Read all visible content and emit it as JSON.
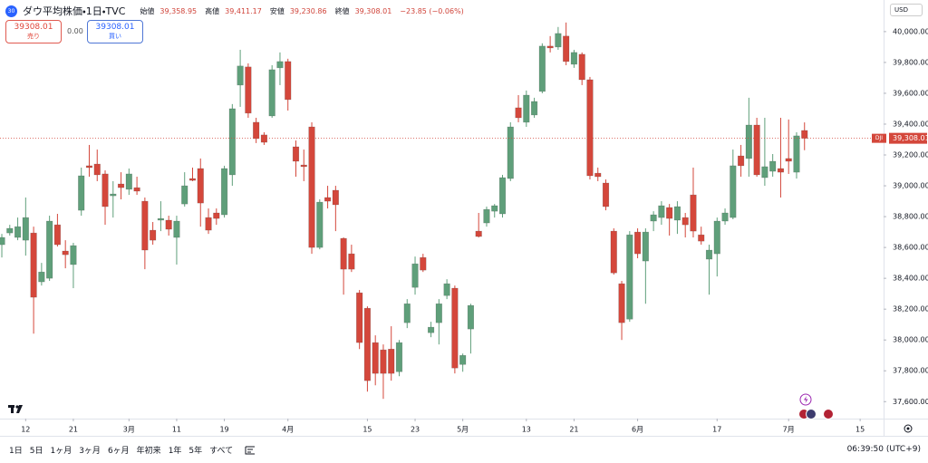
{
  "header": {
    "logo": "30",
    "title": "ダウ平均株価・1日・TVC",
    "open_label": "始値",
    "open": "39,358.95",
    "high_label": "高値",
    "high": "39,411.17",
    "low_label": "安値",
    "low": "39,230.86",
    "close_label": "終値",
    "close": "39,308.01",
    "change": "−23.85 (−0.06%)"
  },
  "trade": {
    "sell_price": "39308.01",
    "sell_label": "売り",
    "spread": "0.00",
    "buy_price": "39308.01",
    "buy_label": "買い"
  },
  "currency": "USD",
  "toolbar": {
    "ranges": [
      "1日",
      "5日",
      "1ヶ月",
      "3ヶ月",
      "6ヶ月",
      "年初来",
      "1年",
      "5年",
      "すべて"
    ],
    "clock": "06:39:50 (UTC+9)"
  },
  "chart_data": {
    "type": "candlestick",
    "up_color": "#5f9f7a",
    "down_color": "#d4473b",
    "grid": false,
    "symbol_tag": "DJI",
    "current_price_label": "39,308.01",
    "ylim": [
      37490,
      40205
    ],
    "yticks": [
      {
        "value": 37600,
        "label": "37,600.00"
      },
      {
        "value": 37800,
        "label": "37,800.00"
      },
      {
        "value": 38000,
        "label": "38,000.00"
      },
      {
        "value": 38200,
        "label": "38,200.00"
      },
      {
        "value": 38400,
        "label": "38,400.00"
      },
      {
        "value": 38600,
        "label": "38,600.00"
      },
      {
        "value": 38800,
        "label": "38,800.00"
      },
      {
        "value": 39000,
        "label": "39,000.00"
      },
      {
        "value": 39200,
        "label": "39,200.00"
      },
      {
        "value": 39400,
        "label": "39,400.00"
      },
      {
        "value": 39600,
        "label": "39,600.00"
      },
      {
        "value": 39800,
        "label": "39,800.00"
      },
      {
        "value": 40000,
        "label": "40,000.00"
      }
    ],
    "xlim": [
      -0.23,
      110.95
    ],
    "xticks": [
      {
        "value": 3,
        "label": "12"
      },
      {
        "value": 9,
        "label": "21"
      },
      {
        "value": 16,
        "label": "3月"
      },
      {
        "value": 22,
        "label": "11"
      },
      {
        "value": 28,
        "label": "19"
      },
      {
        "value": 36,
        "label": "4月"
      },
      {
        "value": 46,
        "label": "15"
      },
      {
        "value": 52,
        "label": "23"
      },
      {
        "value": 58,
        "label": "5月"
      },
      {
        "value": 66,
        "label": "13"
      },
      {
        "value": 72,
        "label": "21"
      },
      {
        "value": 80,
        "label": "6月"
      },
      {
        "value": 90,
        "label": "17"
      },
      {
        "value": 99,
        "label": "7月"
      },
      {
        "value": 108,
        "label": "15"
      }
    ],
    "open": [
      38618,
      38694,
      38665,
      38647,
      38694,
      38377,
      38400,
      38747,
      38577,
      38489,
      38841,
      39130,
      39141,
      39077,
      38935,
      39012,
      38977,
      38988,
      38900,
      38712,
      38777,
      38777,
      38665,
      38882,
      39047,
      39112,
      38794,
      38824,
      38812,
      39071,
      39653,
      39771,
      39412,
      39330,
      39453,
      39765,
      39806,
      39253,
      39135,
      39382,
      38600,
      38924,
      38971,
      38659,
      38559,
      38306,
      38206,
      37983,
      37936,
      37941,
      37794,
      38112,
      38341,
      38535,
      38047,
      38112,
      38288,
      38336,
      37841,
      38071,
      38706,
      38759,
      38835,
      38818,
      39047,
      39506,
      39412,
      39459,
      39612,
      39906,
      39900,
      39971,
      39788,
      39853,
      39688,
      39082,
      39018,
      38706,
      38365,
      38135,
      38700,
      38512,
      38771,
      38794,
      38859,
      38777,
      38794,
      38941,
      38682,
      38524,
      38559,
      38771,
      38794,
      39194,
      39177,
      39394,
      39053,
      39094,
      39112,
      39177,
      39088,
      39358.95
    ],
    "high": [
      38688,
      38747,
      38794,
      38924,
      38735,
      38500,
      38806,
      38818,
      38647,
      38630,
      39118,
      39265,
      39235,
      39100,
      39030,
      39088,
      39112,
      39059,
      38924,
      38765,
      38900,
      38806,
      38806,
      39088,
      39118,
      39177,
      38853,
      38853,
      39130,
      39530,
      39882,
      39794,
      39441,
      39347,
      39782,
      39865,
      39824,
      39294,
      39235,
      39412,
      38912,
      39000,
      39000,
      38665,
      38618,
      38324,
      38218,
      38030,
      37971,
      38089,
      38000,
      38265,
      38541,
      38559,
      38118,
      38265,
      38394,
      38353,
      37912,
      38235,
      38824,
      38865,
      38882,
      39071,
      39412,
      39588,
      39618,
      39571,
      39924,
      39971,
      40030,
      40059,
      39882,
      39865,
      39706,
      39118,
      39041,
      38724,
      38383,
      38706,
      38724,
      38724,
      38835,
      38900,
      38882,
      38900,
      38824,
      39118,
      38735,
      38618,
      38794,
      38853,
      39235,
      39265,
      39571,
      39441,
      39441,
      39206,
      39441,
      39430,
      39347,
      39411.17
    ],
    "low": [
      38535,
      38677,
      38647,
      38547,
      38041,
      38353,
      38383,
      38606,
      38465,
      38336,
      38806,
      39059,
      39030,
      38747,
      38794,
      38912,
      38941,
      38941,
      38459,
      38618,
      38706,
      38677,
      38489,
      38865,
      39030,
      38735,
      38688,
      38747,
      38794,
      39000,
      39512,
      39441,
      39277,
      39265,
      39441,
      39653,
      39488,
      39059,
      39030,
      38559,
      38588,
      38853,
      38706,
      38294,
      38441,
      37941,
      37665,
      37706,
      37618,
      37736,
      37765,
      38077,
      38294,
      38441,
      38018,
      37971,
      38265,
      37783,
      37794,
      37912,
      38665,
      38735,
      38794,
      38794,
      39030,
      39412,
      39382,
      39441,
      39600,
      39865,
      39882,
      39782,
      39765,
      39653,
      39041,
      39030,
      38841,
      38424,
      38000,
      38118,
      38530,
      38235,
      38706,
      38747,
      38677,
      38688,
      38665,
      38665,
      38618,
      38294,
      38412,
      38747,
      38783,
      39059,
      39059,
      39059,
      39000,
      39059,
      38924,
      39077,
      39047,
      39230.86
    ],
    "close": [
      38665,
      38724,
      38735,
      38794,
      38277,
      38441,
      38771,
      38618,
      38553,
      38612,
      39065,
      39118,
      39071,
      38865,
      38947,
      38988,
      39077,
      38965,
      38583,
      38647,
      38788,
      38718,
      38771,
      39000,
      39035,
      38888,
      38712,
      38788,
      39112,
      39500,
      39777,
      39471,
      39306,
      39282,
      39753,
      39806,
      39559,
      39159,
      39124,
      38600,
      38894,
      38900,
      38877,
      38459,
      38459,
      37983,
      37736,
      37783,
      37783,
      37783,
      37983,
      38235,
      38494,
      38453,
      38083,
      38235,
      38365,
      37818,
      37900,
      38224,
      38671,
      38847,
      38871,
      39053,
      39382,
      39441,
      39588,
      39547,
      39906,
      39894,
      39988,
      39806,
      39865,
      39688,
      39065,
      39059,
      38865,
      38435,
      38112,
      38682,
      38559,
      38700,
      38812,
      38871,
      38788,
      38865,
      38747,
      38706,
      38641,
      38583,
      38771,
      38824,
      39130,
      39130,
      39394,
      39071,
      39124,
      39159,
      39088,
      39159,
      39324,
      39308.01
    ]
  }
}
